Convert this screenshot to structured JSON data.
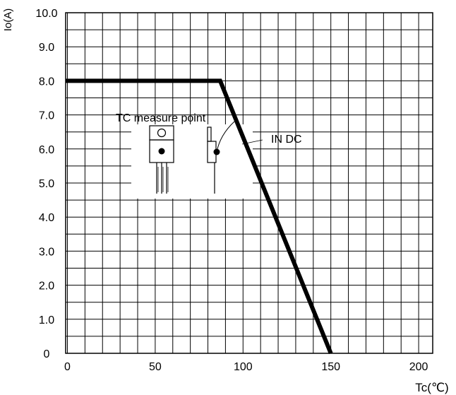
{
  "chart_data": {
    "type": "line",
    "title": "",
    "xlabel": "Tc(℃)",
    "ylabel": "Io(A)",
    "xlim": [
      -1,
      208
    ],
    "ylim": [
      0,
      10
    ],
    "x_ticks": [
      0,
      50,
      100,
      150,
      200
    ],
    "x_tick_labels": [
      "0",
      "50",
      "100",
      "150",
      "200"
    ],
    "y_ticks": [
      0,
      1,
      2,
      3,
      4,
      5,
      6,
      7,
      8,
      9,
      10
    ],
    "y_tick_labels": [
      "0",
      "1.0",
      "2.0",
      "3.0",
      "4.0",
      "5.0",
      "6.0",
      "7.0",
      "8.0",
      "9.0",
      "10.0"
    ],
    "grid": true,
    "series": [
      {
        "x": [
          -1,
          87,
          150
        ],
        "y": [
          8.0,
          8.0,
          0
        ]
      }
    ],
    "annotations": {
      "measure_point": "TC measure point",
      "curve_label": "IN DC"
    },
    "colors": {
      "line": "#000000",
      "grid": "#000000",
      "background": "#ffffff"
    }
  }
}
